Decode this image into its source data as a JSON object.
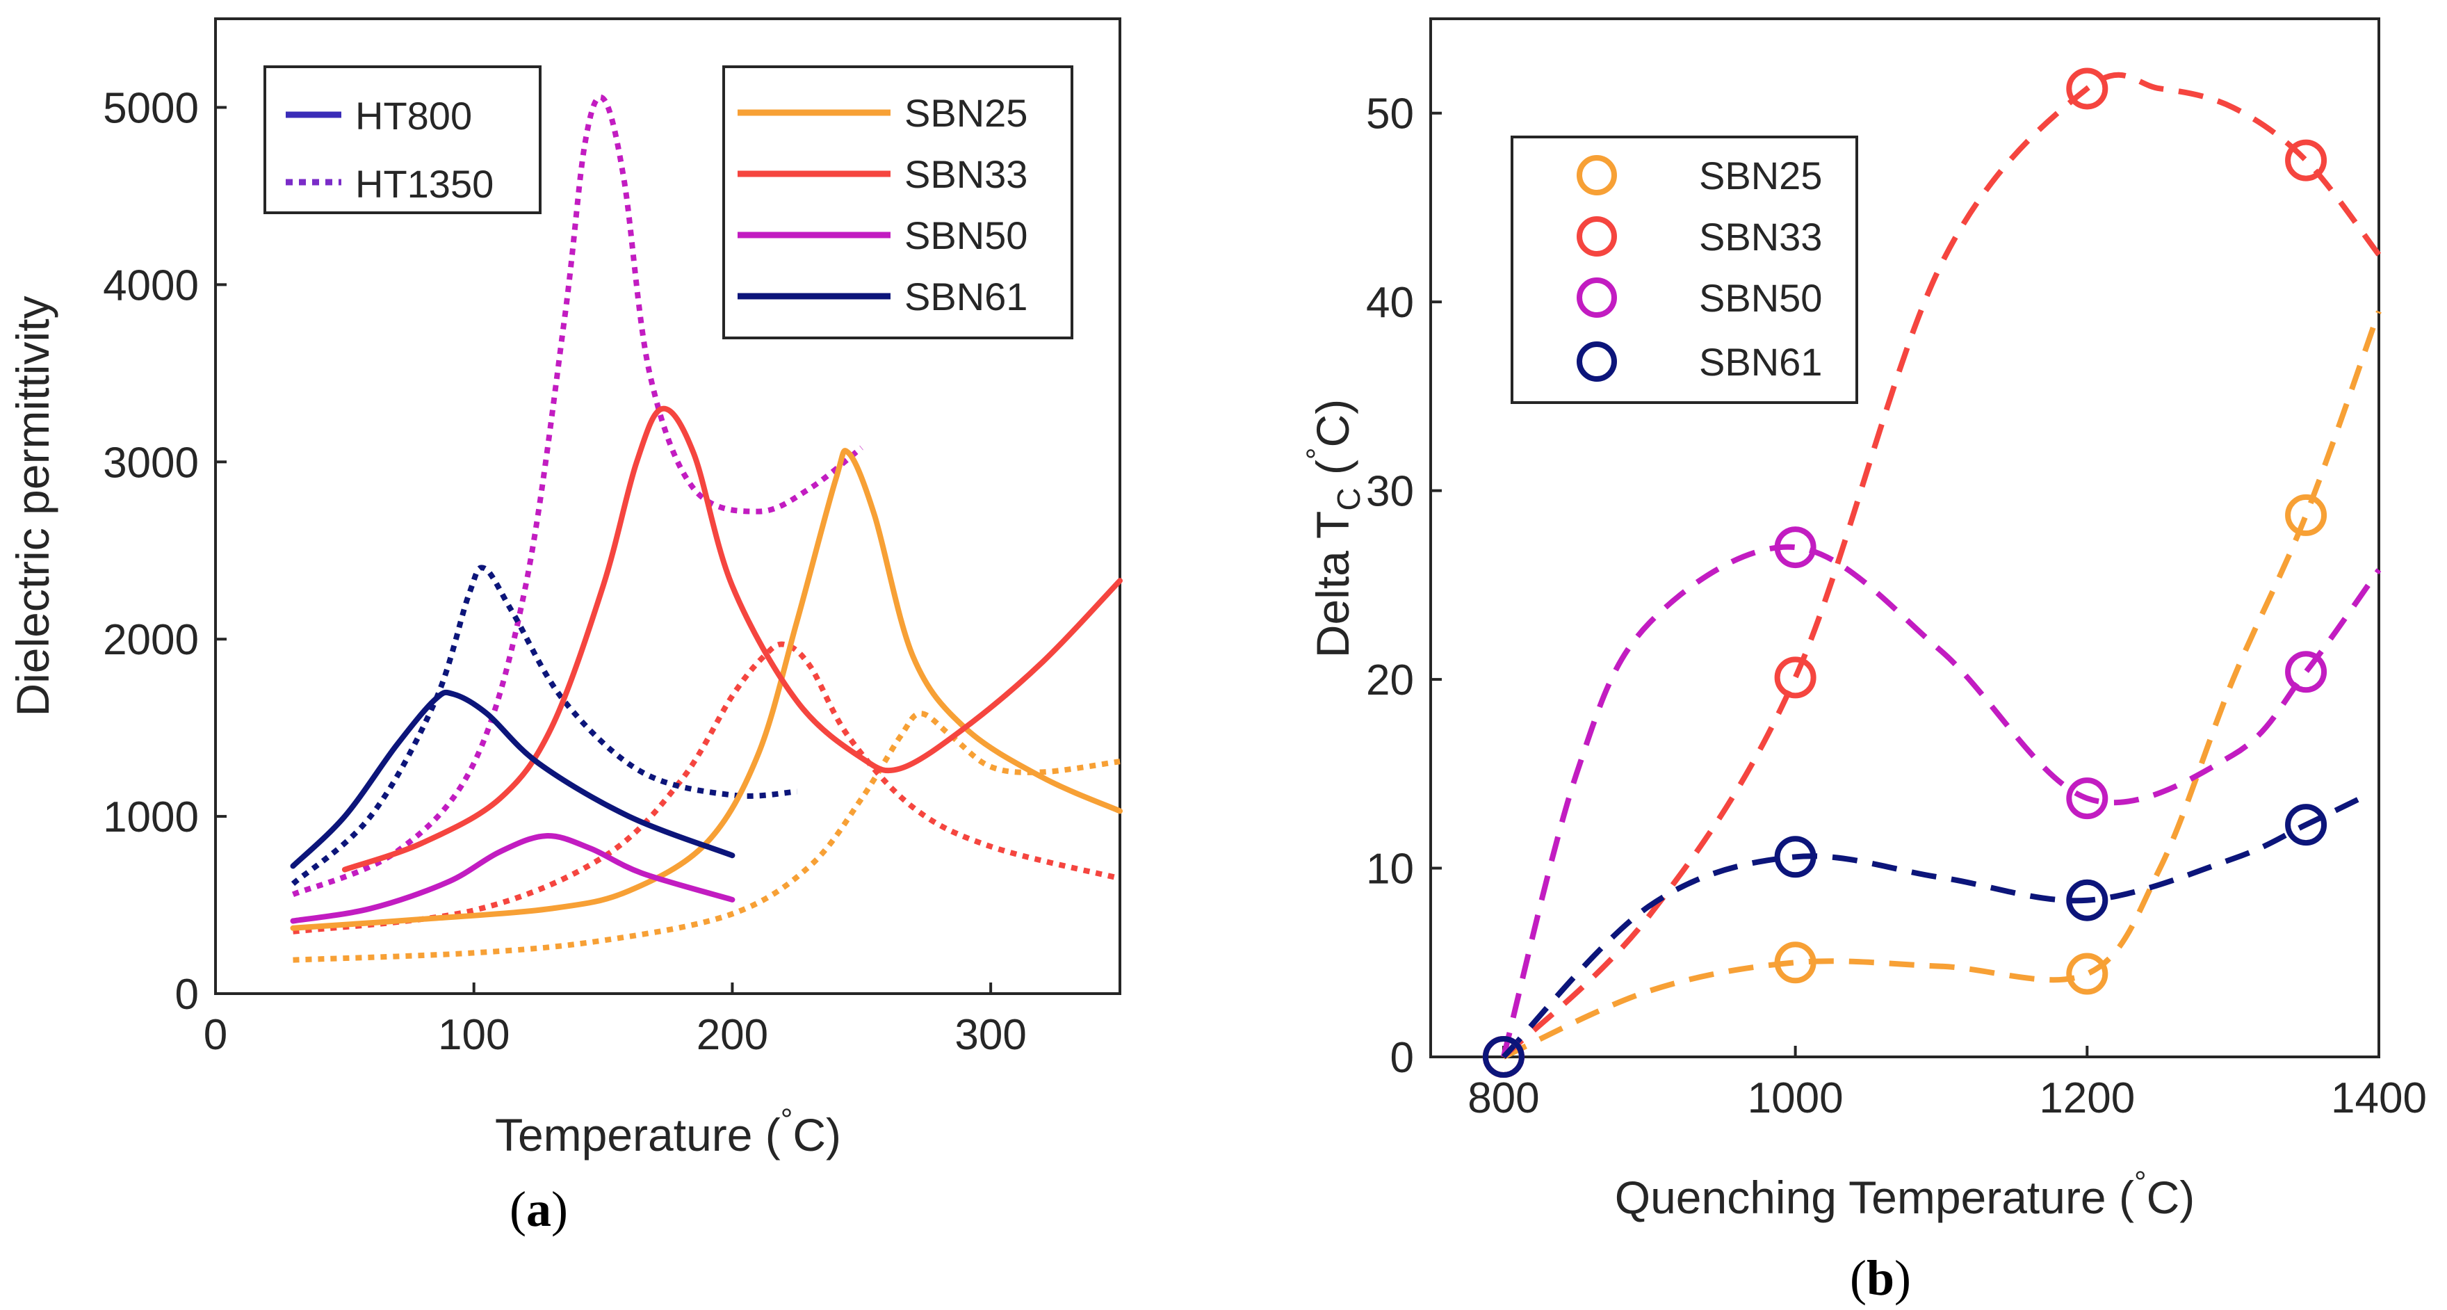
{
  "chart_data": [
    {
      "type": "line",
      "panel_label": "a",
      "xlabel": "Temperature (",
      "xlabel_unit": "C)",
      "ylabel": "Dielectric permittivity",
      "xlim": [
        0,
        350
      ],
      "ylim": [
        0,
        5500
      ],
      "xticks": [
        "0",
        "100",
        "200",
        "300"
      ],
      "yticks": [
        "0",
        "1000",
        "2000",
        "3000",
        "4000",
        "5000"
      ],
      "legend_style": {
        "entries": [
          {
            "label": "HT800",
            "dash": "solid",
            "color": "#3a2cb8"
          },
          {
            "label": "HT1350",
            "dash": "dotted",
            "color": "#7b2cc8"
          }
        ],
        "position": "top-left"
      },
      "legend_samples": {
        "entries": [
          "SBN25",
          "SBN33",
          "SBN50",
          "SBN61"
        ],
        "position": "top-right"
      },
      "series": [
        {
          "name": "SBN25",
          "treatment": "HT800",
          "color": "#f7a035",
          "x": [
            30,
            80,
            130,
            160,
            190,
            210,
            225,
            240,
            245,
            255,
            270,
            290,
            320,
            350
          ],
          "y": [
            370,
            420,
            480,
            580,
            850,
            1350,
            2100,
            2900,
            3050,
            2700,
            1900,
            1500,
            1220,
            1030
          ]
        },
        {
          "name": "SBN25",
          "treatment": "HT1350",
          "color": "#f7a035",
          "x": [
            30,
            100,
            150,
            200,
            230,
            250,
            265,
            273,
            285,
            300,
            320,
            350
          ],
          "y": [
            190,
            230,
            300,
            450,
            720,
            1100,
            1450,
            1580,
            1450,
            1280,
            1250,
            1310
          ]
        },
        {
          "name": "SBN33",
          "treatment": "HT800",
          "color": "#f5453f",
          "x": [
            50,
            80,
            110,
            130,
            150,
            163,
            173,
            185,
            200,
            225,
            250,
            265,
            290,
            320,
            350
          ],
          "y": [
            700,
            850,
            1100,
            1500,
            2300,
            3000,
            3300,
            3050,
            2300,
            1650,
            1330,
            1270,
            1500,
            1870,
            2330
          ]
        },
        {
          "name": "SBN33",
          "treatment": "HT1350",
          "color": "#f5453f",
          "x": [
            30,
            100,
            150,
            180,
            200,
            212,
            220,
            230,
            245,
            270,
            300,
            350
          ],
          "y": [
            350,
            470,
            770,
            1200,
            1680,
            1900,
            1970,
            1850,
            1450,
            1050,
            830,
            650
          ]
        },
        {
          "name": "SBN50",
          "treatment": "HT800",
          "color": "#c21cc1",
          "x": [
            30,
            60,
            90,
            110,
            128,
            145,
            165,
            200
          ],
          "y": [
            410,
            480,
            630,
            800,
            890,
            820,
            680,
            530
          ]
        },
        {
          "name": "SBN50",
          "treatment": "HT1350",
          "color": "#c21cc1",
          "x": [
            30,
            70,
            100,
            120,
            135,
            143,
            150,
            158,
            168,
            185,
            210,
            230,
            250
          ],
          "y": [
            560,
            800,
            1300,
            2300,
            3800,
            4800,
            5050,
            4600,
            3500,
            2850,
            2720,
            2850,
            3080
          ]
        },
        {
          "name": "SBN61",
          "treatment": "HT800",
          "color": "#0c157a",
          "x": [
            30,
            50,
            70,
            85,
            92,
            105,
            125,
            160,
            200
          ],
          "y": [
            720,
            1000,
            1400,
            1660,
            1690,
            1580,
            1300,
            1000,
            780
          ]
        },
        {
          "name": "SBN61",
          "treatment": "HT1350",
          "color": "#0c157a",
          "x": [
            30,
            60,
            85,
            98,
            104,
            115,
            135,
            165,
            200,
            225
          ],
          "y": [
            620,
            1000,
            1650,
            2250,
            2400,
            2150,
            1650,
            1250,
            1120,
            1140
          ]
        }
      ]
    },
    {
      "type": "scatter",
      "panel_label": "b",
      "xlabel": "Quenching Temperature (",
      "xlabel_unit": "C)",
      "ylabel": "Delta T",
      "ylabel_sub": "C",
      "ylabel_unit": "C)",
      "xlim": [
        750,
        1400
      ],
      "ylim": [
        0,
        55
      ],
      "xticks": [
        "800",
        "1000",
        "1200",
        "1400"
      ],
      "yticks": [
        "0",
        "10",
        "20",
        "30",
        "40",
        "50"
      ],
      "legend": {
        "entries": [
          "SBN25",
          "SBN33",
          "SBN50",
          "SBN61"
        ],
        "position": "top-left"
      },
      "series": [
        {
          "name": "SBN25",
          "color": "#f7a035",
          "x": [
            800,
            1000,
            1200,
            1350
          ],
          "y": [
            0,
            5,
            4.4,
            28.7
          ],
          "curve_x": [
            800,
            900,
            1000,
            1100,
            1200,
            1250,
            1300,
            1350,
            1400
          ],
          "curve_y": [
            0,
            3.5,
            5,
            4.8,
            4.4,
            10,
            20,
            28.7,
            39.5
          ]
        },
        {
          "name": "SBN33",
          "color": "#f5453f",
          "x": [
            800,
            1000,
            1200,
            1350
          ],
          "y": [
            0,
            20.1,
            51.3,
            47.5
          ],
          "curve_x": [
            800,
            900,
            1000,
            1100,
            1200,
            1250,
            1300,
            1350,
            1400
          ],
          "curve_y": [
            0,
            7.5,
            20.1,
            42,
            51.3,
            51.3,
            50.3,
            47.5,
            42.5
          ]
        },
        {
          "name": "SBN50",
          "color": "#c21cc1",
          "x": [
            800,
            1000,
            1200,
            1350
          ],
          "y": [
            0,
            27,
            13.7,
            20.4
          ],
          "curve_x": [
            800,
            850,
            900,
            1000,
            1100,
            1200,
            1300,
            1350,
            1400
          ],
          "curve_y": [
            0,
            15,
            23,
            27,
            21.5,
            13.7,
            16,
            20.4,
            25.8
          ]
        },
        {
          "name": "SBN61",
          "color": "#0c157a",
          "x": [
            800,
            1000,
            1200,
            1350
          ],
          "y": [
            0,
            10.6,
            8.3,
            12.3
          ],
          "curve_x": [
            800,
            900,
            1000,
            1100,
            1200,
            1300,
            1350,
            1390
          ],
          "curve_y": [
            0,
            8,
            10.6,
            9.5,
            8.3,
            10.5,
            12.3,
            13.8
          ]
        }
      ]
    }
  ]
}
